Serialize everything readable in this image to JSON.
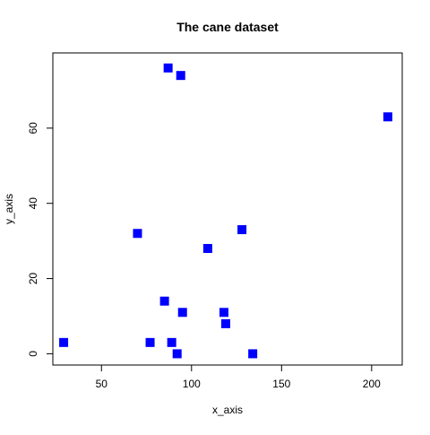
{
  "chart_data": {
    "type": "scatter",
    "title": "The cane dataset",
    "xlabel": "x_axis",
    "ylabel": "y_axis",
    "xlim": [
      23,
      217
    ],
    "ylim": [
      -3,
      80
    ],
    "x_ticks": [
      50,
      100,
      150,
      200
    ],
    "y_ticks": [
      0,
      20,
      40,
      60
    ],
    "grid": false,
    "legend": "none",
    "marker": "square",
    "color": "#0000ff",
    "series": [
      {
        "x": [
          29,
          70,
          77,
          85,
          87,
          89,
          92,
          94,
          95,
          109,
          118,
          119,
          128,
          134,
          209
        ],
        "y": [
          3,
          32,
          3,
          14,
          76,
          3,
          0,
          74,
          11,
          28,
          11,
          8,
          33,
          0,
          63
        ]
      }
    ]
  }
}
